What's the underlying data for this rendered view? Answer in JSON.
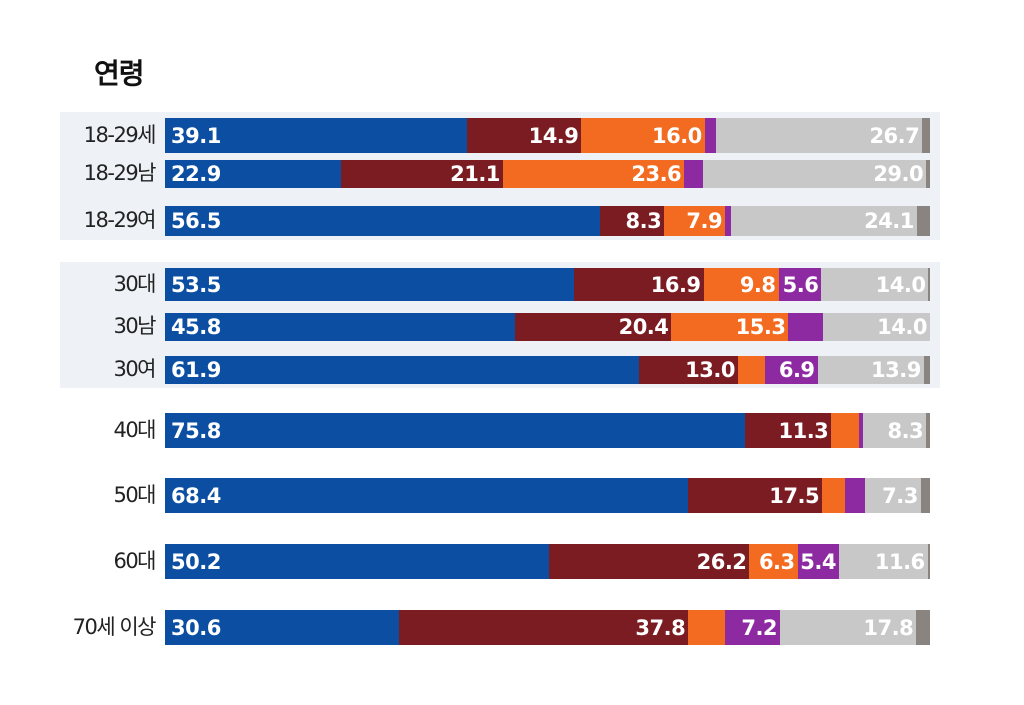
{
  "chart_data": {
    "type": "bar",
    "orientation": "horizontal",
    "stacked": true,
    "title": "연령",
    "categories": [
      "18-29세",
      "18-29남",
      "18-29여",
      "30대",
      "30남",
      "30여",
      "40대",
      "50대",
      "60대",
      "70세 이상"
    ],
    "segment_colors": [
      "#0b4ea2",
      "#7a1c22",
      "#f36b21",
      "#8e2aa1",
      "#c8c8c8",
      "#8a8480"
    ],
    "background_color": "#eef1f6",
    "rows": [
      {
        "label": "18-29세",
        "values": [
          39.1,
          14.9,
          16.0,
          1.5,
          26.7,
          1.0
        ],
        "labels": [
          "39.1",
          "14.9",
          "16.0",
          "",
          "26.7",
          ""
        ]
      },
      {
        "label": "18-29남",
        "values": [
          22.9,
          21.1,
          23.6,
          2.5,
          29.0,
          0.5
        ],
        "labels": [
          "22.9",
          "21.1",
          "23.6",
          "",
          "29.0",
          ""
        ]
      },
      {
        "label": "18-29여",
        "values": [
          56.5,
          8.3,
          7.9,
          0.8,
          24.1,
          1.7
        ],
        "labels": [
          "56.5",
          "8.3",
          "7.9",
          "",
          "24.1",
          ""
        ]
      },
      {
        "label": "30대",
        "values": [
          53.5,
          16.9,
          9.8,
          5.6,
          14.0,
          0.2
        ],
        "labels": [
          "53.5",
          "16.9",
          "9.8",
          "5.6",
          "14.0",
          ""
        ]
      },
      {
        "label": "30남",
        "values": [
          45.8,
          20.4,
          15.3,
          4.5,
          14.0,
          0.0
        ],
        "labels": [
          "45.8",
          "20.4",
          "15.3",
          "",
          "14.0",
          ""
        ]
      },
      {
        "label": "30여",
        "values": [
          61.9,
          13.0,
          3.5,
          6.9,
          13.9,
          0.8
        ],
        "labels": [
          "61.9",
          "13.0",
          "",
          "6.9",
          "13.9",
          ""
        ]
      },
      {
        "label": "40대",
        "values": [
          75.8,
          11.3,
          3.6,
          0.5,
          8.3,
          0.5
        ],
        "labels": [
          "75.8",
          "11.3",
          "",
          "",
          "8.3",
          ""
        ]
      },
      {
        "label": "50대",
        "values": [
          68.4,
          17.5,
          3.0,
          2.6,
          7.3,
          1.2
        ],
        "labels": [
          "68.4",
          "17.5",
          "",
          "",
          "7.3",
          ""
        ]
      },
      {
        "label": "60대",
        "values": [
          50.2,
          26.2,
          6.3,
          5.4,
          11.6,
          0.3
        ],
        "labels": [
          "50.2",
          "26.2",
          "6.3",
          "5.4",
          "11.6",
          ""
        ]
      },
      {
        "label": "70세 이상",
        "values": [
          30.6,
          37.8,
          4.8,
          7.2,
          17.8,
          1.8
        ],
        "labels": [
          "30.6",
          "37.8",
          "",
          "7.2",
          "17.8",
          ""
        ]
      }
    ]
  }
}
